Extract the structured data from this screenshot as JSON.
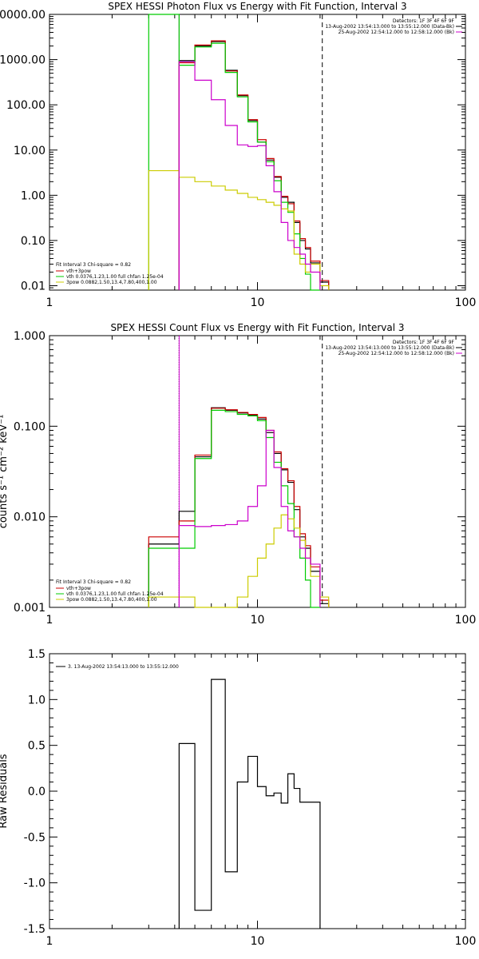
{
  "chart_data": [
    {
      "type": "line",
      "title": "SPEX HESSI Photon Flux vs Energy with Fit Function, Interval 3",
      "xlabel": "",
      "ylabel": "",
      "xscale": "log",
      "yscale": "log",
      "xlim": [
        1,
        100
      ],
      "ylim": [
        0.008,
        10000
      ],
      "xticks": [
        1,
        10,
        100
      ],
      "xtick_labels": [
        "1",
        "10",
        "100"
      ],
      "yticks": [
        10000,
        1000,
        100,
        10,
        1,
        0.1,
        0.01
      ],
      "ytick_labels": [
        "10000.00",
        "1000.00",
        "100.00",
        "10.00",
        "1.00",
        "0.10",
        "0.01"
      ],
      "info_lines": [
        "Detectors: 1F 3F 4F 6F 9F",
        "13-Aug-2002 13:54:13.000 to 13:55:12.000 (Data-Bk)",
        "25-Aug-2002 12:54:12.000 to 12:58:12.000 (Bk)"
      ],
      "info_colors": [
        "",
        "#000000",
        "#cc00cc"
      ],
      "fit_info": "Fit Interval 3   Chi-square = 0.82",
      "legend": [
        {
          "label": "vth+3pow",
          "color": "#cc0000"
        },
        {
          "label": "vth 0.0376,1.23,1.00  full chfan 1.25e-04",
          "color": "#00cc00"
        },
        {
          "label": "3pow 0.0882,1.50,13.4,7.80,400,1.00",
          "color": "#cccc00"
        }
      ],
      "markers": [
        {
          "x": 4.2,
          "style": "solid",
          "color": "#cc00cc"
        },
        {
          "x": 20.5,
          "style": "dashed",
          "color": "#000000"
        }
      ],
      "edges": [
        3,
        4.2,
        5,
        6,
        7,
        8,
        9,
        10,
        11,
        12,
        13,
        14,
        15,
        16,
        17,
        18,
        20,
        22
      ],
      "series": [
        {
          "name": "Data-Bk",
          "color": "#000000",
          "values": [
            null,
            950,
            2000,
            2500,
            580,
            160,
            45,
            15,
            6,
            2.5,
            0.9,
            0.7,
            0.25,
            0.1,
            0.065,
            0.032,
            0.012
          ]
        },
        {
          "name": "vth+3pow",
          "color": "#cc0000",
          "values": [
            null,
            850,
            2100,
            2600,
            560,
            165,
            47,
            17,
            6.5,
            2.6,
            0.95,
            0.65,
            0.27,
            0.11,
            0.07,
            0.035,
            0.013
          ]
        },
        {
          "name": "vth",
          "color": "#00cc00",
          "values": [
            15000,
            750,
            1900,
            2300,
            520,
            150,
            42,
            15,
            5.5,
            2.1,
            0.7,
            0.42,
            0.14,
            0.04,
            0.018,
            0.007,
            null
          ]
        },
        {
          "name": "3pow",
          "color": "#cccc00",
          "values": [
            3.5,
            2.5,
            2.0,
            1.6,
            1.3,
            1.1,
            0.9,
            0.8,
            0.7,
            0.6,
            0.5,
            0.45,
            0.05,
            0.03,
            0.02,
            0.03,
            0.01
          ]
        },
        {
          "name": "Bk",
          "color": "#cc00cc",
          "values": [
            null,
            900,
            350,
            130,
            35,
            13,
            12,
            12.5,
            4.5,
            1.2,
            0.25,
            0.1,
            0.07,
            0.05,
            0.03,
            0.02,
            null
          ]
        }
      ]
    },
    {
      "type": "line",
      "title": "SPEX HESSI Count Flux vs Energy with Fit Function, Interval 3",
      "xlabel": "",
      "ylabel": "counts s⁻¹ cm⁻² keV⁻¹",
      "xscale": "log",
      "yscale": "log",
      "xlim": [
        1,
        100
      ],
      "ylim": [
        0.001,
        1
      ],
      "xticks": [
        1,
        10,
        100
      ],
      "xtick_labels": [
        "1",
        "10",
        "100"
      ],
      "yticks": [
        1,
        0.1,
        0.01,
        0.001
      ],
      "ytick_labels": [
        "1.000",
        "0.100",
        "0.010",
        "0.001"
      ],
      "info_lines": [
        "Detectors: 1F 3F 4F 6F 9F",
        "13-Aug-2002 13:54:13.000 to 13:55:12.000 (Data-Bk)",
        "25-Aug-2002 12:54:12.000 to 12:58:12.000 (Bk)"
      ],
      "info_colors": [
        "",
        "#000000",
        "#cc00cc"
      ],
      "fit_info": "Fit Interval 3   Chi-square = 0.82",
      "legend": [
        {
          "label": "vth+3pow",
          "color": "#cc0000"
        },
        {
          "label": "vth 0.0376,1.23,1.00  full chfan 1.25e-04",
          "color": "#00cc00"
        },
        {
          "label": "3pow 0.0882,1.50,13.4,7.80,400,1.00",
          "color": "#cccc00"
        }
      ],
      "markers": [
        {
          "x": 4.2,
          "style": "dotted",
          "color": "#000000"
        },
        {
          "x": 4.2,
          "style": "solid",
          "color": "#cc00cc"
        },
        {
          "x": 20.5,
          "style": "dashed",
          "color": "#000000"
        }
      ],
      "edges": [
        3,
        4.2,
        5,
        6,
        7,
        8,
        9,
        10,
        11,
        12,
        13,
        14,
        15,
        16,
        17,
        18,
        20,
        22
      ],
      "series": [
        {
          "name": "Data-Bk",
          "color": "#000000",
          "values": [
            0.005,
            0.0115,
            0.046,
            0.16,
            0.15,
            0.14,
            0.132,
            0.12,
            0.085,
            0.05,
            0.033,
            0.024,
            0.012,
            0.006,
            0.0045,
            0.0025,
            0.0011
          ]
        },
        {
          "name": "vth+3pow",
          "color": "#cc0000",
          "values": [
            0.006,
            0.009,
            0.048,
            0.158,
            0.152,
            0.142,
            0.135,
            0.125,
            0.09,
            0.052,
            0.034,
            0.025,
            0.013,
            0.0065,
            0.0048,
            0.0028,
            0.0012
          ]
        },
        {
          "name": "vth",
          "color": "#00cc00",
          "values": [
            0.0045,
            0.0045,
            0.044,
            0.15,
            0.145,
            0.135,
            0.13,
            0.115,
            0.075,
            0.04,
            0.022,
            0.014,
            0.006,
            0.0035,
            0.002,
            0.001,
            null
          ]
        },
        {
          "name": "3pow",
          "color": "#cccc00",
          "values": [
            0.0013,
            0.0013,
            0.0009,
            0.0009,
            0.0009,
            0.0013,
            0.0022,
            0.0035,
            0.005,
            0.0075,
            0.0105,
            0.0095,
            0.0075,
            0.0055,
            0.0035,
            0.0022,
            0.0013
          ]
        },
        {
          "name": "Bk",
          "color": "#cc00cc",
          "values": [
            null,
            0.008,
            0.0078,
            0.008,
            0.0082,
            0.009,
            0.013,
            0.022,
            0.09,
            0.035,
            0.013,
            0.007,
            0.006,
            0.0045,
            0.0035,
            0.003,
            null
          ]
        }
      ]
    },
    {
      "type": "line",
      "title": "",
      "xlabel": "",
      "ylabel": "Raw Residuals",
      "xscale": "log",
      "yscale": "linear",
      "xlim": [
        1,
        100
      ],
      "ylim": [
        -1.5,
        1.5
      ],
      "xticks": [
        1,
        10,
        100
      ],
      "xtick_labels": [
        "1",
        "10",
        "100"
      ],
      "yticks": [
        1.5,
        1.0,
        0.5,
        0.0,
        -0.5,
        -1.0,
        -1.5
      ],
      "ytick_labels": [
        "1.5",
        "1.0",
        "0.5",
        "0.0",
        "-0.5",
        "-1.0",
        "-1.5"
      ],
      "legend": [
        {
          "label": "3. 13-Aug-2002 13:54:13.000 to 13:55:12.000",
          "color": "#000000"
        }
      ],
      "edges": [
        4.2,
        5,
        6,
        7,
        8,
        9,
        10,
        11,
        12,
        13,
        14,
        15,
        16,
        17,
        18,
        20
      ],
      "series": [
        {
          "name": "",
          "color": "#000000",
          "values": [
            0.52,
            -1.3,
            1.22,
            -0.88,
            0.1,
            0.38,
            0.05,
            -0.05,
            -0.02,
            -0.13,
            0.19,
            0.03,
            -0.12,
            -0.12,
            -0.12
          ]
        }
      ]
    }
  ]
}
